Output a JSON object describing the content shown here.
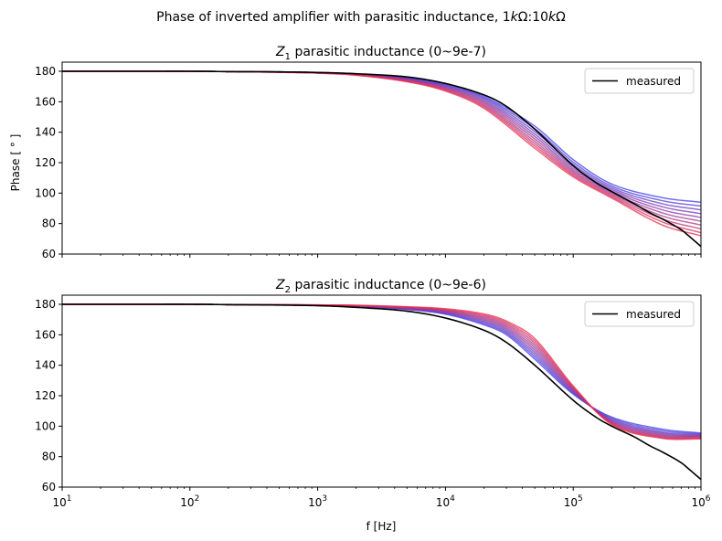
{
  "figure": {
    "suptitle_prefix": "Phase of inverted amplifier with parasitic inductance, 1",
    "suptitle_k1": "k",
    "suptitle_omega1": "Ω",
    "suptitle_sep": ":10",
    "suptitle_k2": "k",
    "suptitle_omega2": "Ω"
  },
  "chart_data": [
    {
      "type": "line",
      "title_symbol": "Z",
      "title_sub": "1",
      "title_text": " parasitic inductance (0~9e-7)",
      "xscale": "log",
      "xlim": [
        10,
        1000000
      ],
      "ylim": [
        60,
        186
      ],
      "xticks": [
        10,
        100,
        1000,
        10000,
        100000,
        1000000
      ],
      "xtick_labels_shown": false,
      "yticks": [
        60,
        80,
        100,
        120,
        140,
        160,
        180
      ],
      "ytick_labels": [
        "60",
        "80",
        "100",
        "120",
        "140",
        "160",
        "180"
      ],
      "ylabel": "Phase [ ° ]",
      "xlabel": "",
      "legend": {
        "position": "top-right",
        "label": "measured",
        "color": "#000000"
      },
      "colors": {
        "start": "#4040e8",
        "end": "#e83050",
        "measured": "#000000"
      },
      "x": [
        10,
        20,
        50,
        100,
        200,
        500,
        1000,
        2000,
        5000,
        10000,
        20000,
        50000,
        100000,
        200000,
        500000,
        1000000
      ],
      "series": [
        {
          "values": [
            180,
            180,
            180,
            180,
            179.8,
            179.6,
            179.2,
            178.3,
            175.8,
            171.5,
            163.6,
            144,
            122,
            106,
            97,
            94
          ]
        },
        {
          "values": [
            180,
            180,
            180,
            180,
            179.8,
            179.6,
            179.2,
            178.2,
            175.5,
            171,
            162.8,
            142.3,
            120.3,
            104.6,
            95,
            91.5
          ]
        },
        {
          "values": [
            180,
            180,
            180,
            180,
            179.8,
            179.6,
            179.1,
            178.1,
            175.2,
            170.5,
            162,
            140.5,
            118.8,
            103.4,
            93,
            89
          ]
        },
        {
          "values": [
            180,
            180,
            180,
            180,
            179.8,
            179.5,
            179.1,
            178,
            174.9,
            170,
            161.1,
            138.8,
            117.4,
            102.3,
            91,
            86.5
          ]
        },
        {
          "values": [
            180,
            180,
            180,
            180,
            179.8,
            179.5,
            179,
            177.9,
            174.6,
            169.5,
            160.2,
            137.2,
            116.1,
            101.3,
            89,
            84
          ]
        },
        {
          "values": [
            180,
            180,
            180,
            180,
            179.8,
            179.5,
            179,
            177.8,
            174.3,
            169,
            159.3,
            135.6,
            114.9,
            100.3,
            87,
            81.5
          ]
        },
        {
          "values": [
            180,
            180,
            180,
            180,
            179.8,
            179.4,
            178.9,
            177.7,
            174,
            168.5,
            158.4,
            134,
            113.8,
            99.4,
            85,
            79
          ]
        },
        {
          "values": [
            180,
            180,
            180,
            180,
            179.8,
            179.4,
            178.9,
            177.6,
            173.7,
            168,
            157.5,
            132.5,
            112.7,
            98.5,
            83,
            76.5
          ]
        },
        {
          "values": [
            180,
            180,
            180,
            180,
            179.8,
            179.4,
            178.8,
            177.5,
            173.4,
            167.5,
            156.6,
            131,
            111.7,
            97.6,
            81,
            74
          ]
        },
        {
          "values": [
            180,
            180,
            180,
            180,
            179.8,
            179.3,
            178.8,
            177.4,
            173.1,
            167,
            155.7,
            129.5,
            110.7,
            96.8,
            79,
            72
          ]
        }
      ],
      "measured": {
        "name": "measured",
        "x": [
          10,
          20,
          50,
          100,
          200,
          500,
          1000,
          2000,
          5000,
          10000,
          20000,
          30000,
          50000,
          100000,
          150000,
          200000,
          300000,
          400000,
          500000,
          700000,
          800000,
          1000000
        ],
        "values": [
          180,
          180,
          180,
          180,
          179.8,
          179.6,
          179.2,
          178.4,
          176.3,
          172,
          164.5,
          157,
          142,
          118,
          107,
          101,
          93,
          87,
          83,
          76,
          72,
          65
        ]
      }
    },
    {
      "type": "line",
      "title_symbol": "Z",
      "title_sub": "2",
      "title_text": " parasitic inductance (0~9e-6)",
      "xscale": "log",
      "xlim": [
        10,
        1000000
      ],
      "ylim": [
        60,
        186
      ],
      "xticks": [
        10,
        100,
        1000,
        10000,
        100000,
        1000000
      ],
      "xtick_labels_shown": true,
      "yticks": [
        60,
        80,
        100,
        120,
        140,
        160,
        180
      ],
      "ytick_labels": [
        "60",
        "80",
        "100",
        "120",
        "140",
        "160",
        "180"
      ],
      "xlabel": "f [Hz]",
      "ylabel": "",
      "legend": {
        "position": "top-right",
        "label": "measured",
        "color": "#000000"
      },
      "colors": {
        "start": "#4040e8",
        "end": "#e83050",
        "measured": "#000000"
      },
      "x": [
        10,
        20,
        50,
        100,
        200,
        500,
        1000,
        2000,
        5000,
        10000,
        20000,
        30000,
        50000,
        100000,
        200000,
        500000,
        1000000
      ],
      "series": [
        {
          "values": [
            180,
            180,
            180,
            180,
            179.8,
            179.6,
            179.2,
            178.5,
            176.6,
            173.5,
            166.5,
            160,
            144,
            121,
            106,
            98,
            95.5
          ]
        },
        {
          "values": [
            180,
            180,
            180,
            180,
            179.8,
            179.6,
            179.2,
            178.6,
            176.8,
            173.9,
            167.3,
            161,
            145.5,
            121.6,
            105.3,
            97,
            95
          ]
        },
        {
          "values": [
            180,
            180,
            180,
            180,
            179.8,
            179.6,
            179.3,
            178.7,
            177,
            174.3,
            168.1,
            162,
            147,
            122.2,
            104.6,
            96,
            94.5
          ]
        },
        {
          "values": [
            180,
            180,
            180,
            180,
            179.8,
            179.6,
            179.3,
            178.8,
            177.2,
            174.7,
            168.9,
            163,
            148.5,
            122.8,
            104,
            95.3,
            94
          ]
        },
        {
          "values": [
            180,
            180,
            180,
            180,
            179.8,
            179.7,
            179.4,
            178.9,
            177.4,
            175.1,
            169.7,
            164,
            150,
            123.4,
            103.4,
            94.6,
            93.6
          ]
        },
        {
          "values": [
            180,
            180,
            180,
            180,
            179.8,
            179.7,
            179.4,
            179,
            177.6,
            175.5,
            170.5,
            165,
            151.5,
            124,
            102.9,
            94,
            93.2
          ]
        },
        {
          "values": [
            180,
            180,
            180,
            180,
            179.8,
            179.7,
            179.5,
            179.1,
            177.8,
            175.9,
            171.3,
            166,
            153,
            124.6,
            102.4,
            93.4,
            92.8
          ]
        },
        {
          "values": [
            180,
            180,
            180,
            180,
            179.8,
            179.7,
            179.5,
            179.2,
            178,
            176.3,
            172.1,
            167,
            154.5,
            125.2,
            101.9,
            92.9,
            92.4
          ]
        },
        {
          "values": [
            180,
            180,
            180,
            180,
            179.8,
            179.7,
            179.6,
            179.3,
            178.2,
            176.7,
            172.9,
            168,
            156,
            125.8,
            101.5,
            92.4,
            92
          ]
        },
        {
          "values": [
            180,
            180,
            180,
            180,
            179.8,
            179.7,
            179.6,
            179.4,
            178.4,
            177.1,
            173.7,
            169,
            157.5,
            126.4,
            101.1,
            92,
            91.6
          ]
        }
      ],
      "measured": {
        "name": "measured",
        "x": [
          10,
          20,
          50,
          100,
          200,
          500,
          1000,
          2000,
          5000,
          10000,
          20000,
          30000,
          50000,
          100000,
          150000,
          200000,
          300000,
          400000,
          500000,
          700000,
          800000,
          1000000
        ],
        "values": [
          180,
          180,
          180,
          180,
          179.8,
          179.5,
          179.1,
          178,
          175.5,
          171,
          163,
          155,
          140,
          117,
          106,
          100,
          93,
          87,
          83,
          76,
          72,
          65
        ]
      }
    }
  ]
}
